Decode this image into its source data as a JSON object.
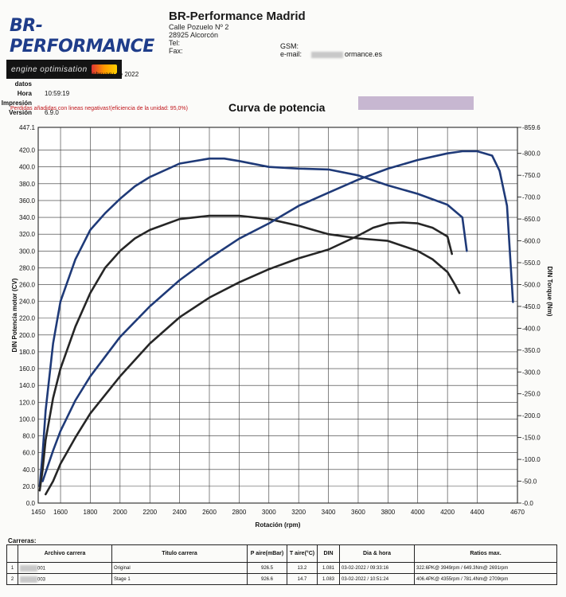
{
  "header": {
    "logo_title": "BR-PERFORMANCE",
    "logo_subtitle": "engine optimisation",
    "company": "BR-Performance Madrid",
    "address1": "Calle Pozuelo Nº 2",
    "address2": "28925 Alcorcón",
    "tel_label": "Tel:",
    "fax_label": "Fax:",
    "gsm_label": "GSM:",
    "email_label": "e-mail:",
    "email_value": "ormance.es"
  },
  "meta": [
    {
      "key": "Imprime datos",
      "value": "Thursday, 3 de February de 2022"
    },
    {
      "key": "Hora Impresión",
      "value": "10:59:19"
    },
    {
      "key": "Versión",
      "value": "6.9.0"
    }
  ],
  "chart_data": {
    "type": "line",
    "title": "Curva de potencia",
    "note": "Perdidas añadidas con lineas negativas!(eficiencia de la unidad: 95,0%)",
    "xlabel": "Rotación (rpm)",
    "ylabel_left": "DIN Potencia motor (CV)",
    "ylabel_right": "DIN Torque (Nm)",
    "xlim": [
      1450,
      4670
    ],
    "ylim_left": [
      0,
      447.1
    ],
    "ylim_right": [
      0,
      859.6
    ],
    "x_ticks": [
      1600,
      1800,
      2000,
      2200,
      2400,
      2600,
      2800,
      3000,
      3200,
      3400,
      3600,
      3800,
      4000,
      4200,
      4400
    ],
    "x_tick_labels": [
      "1450",
      "1600",
      "1800",
      "2000",
      "2200",
      "2400",
      "2600",
      "2800",
      "3000",
      "3200",
      "3400",
      "3600",
      "3800",
      "4000",
      "4200",
      "4400",
      "4670"
    ],
    "y_left_ticks": [
      0,
      20,
      40,
      60,
      80,
      100,
      120,
      140,
      160,
      180,
      200,
      220,
      240,
      260,
      280,
      300,
      320,
      340,
      360,
      380,
      400,
      420
    ],
    "y_left_labels": [
      "0.0",
      "20.0",
      "40.0",
      "60.0",
      "80.0",
      "100.0",
      "120.0",
      "140.0",
      "160.0",
      "180.0",
      "200.0",
      "220.0",
      "240.0",
      "260.0",
      "280.0",
      "300.0",
      "320.0",
      "340.0",
      "360.0",
      "380.0",
      "400.0",
      "420.0",
      "447.1"
    ],
    "y_right_ticks": [
      0,
      50,
      100,
      150,
      200,
      250,
      300,
      350,
      400,
      450,
      500,
      550,
      600,
      650,
      700,
      750,
      800
    ],
    "y_right_labels": [
      "0.0",
      "50.0",
      "100.0",
      "150.0",
      "200.0",
      "250.0",
      "300.0",
      "350.0",
      "400.0",
      "450.0",
      "500.0",
      "550.0",
      "600.0",
      "650.0",
      "700.0",
      "750.0",
      "800.0",
      "859.6"
    ],
    "grid": true,
    "series": [
      {
        "name": "Stage 1",
        "quantity": "power",
        "axis": "left",
        "color": "#1f3a78",
        "x": [
          1460,
          1480,
          1500,
          1550,
          1600,
          1700,
          1800,
          1900,
          2000,
          2100,
          2200,
          2400,
          2600,
          2700,
          2800,
          3000,
          3200,
          3400,
          3600,
          3800,
          4000,
          4200,
          4300,
          4330
        ],
        "y": [
          20,
          60,
          110,
          190,
          240,
          290,
          325,
          345,
          362,
          377,
          388,
          404,
          410,
          410,
          407,
          400,
          398,
          397,
          390,
          378,
          368,
          355,
          340,
          300
        ]
      },
      {
        "name": "Original",
        "quantity": "power",
        "axis": "left",
        "color": "#262626",
        "x": [
          1460,
          1480,
          1500,
          1550,
          1600,
          1700,
          1800,
          1900,
          2000,
          2100,
          2200,
          2400,
          2600,
          2800,
          3000,
          3200,
          3400,
          3600,
          3800,
          4000,
          4100,
          4200,
          4250,
          4280
        ],
        "y": [
          15,
          40,
          75,
          125,
          160,
          210,
          250,
          280,
          300,
          315,
          325,
          338,
          342,
          342,
          338,
          330,
          320,
          315,
          312,
          300,
          290,
          275,
          260,
          250
        ]
      },
      {
        "name": "Stage 1",
        "quantity": "torque",
        "axis": "right",
        "color": "#1f3a78",
        "x": [
          1480,
          1500,
          1550,
          1600,
          1700,
          1800,
          2000,
          2200,
          2400,
          2600,
          2800,
          3000,
          3200,
          3400,
          3600,
          3800,
          4000,
          4200,
          4300,
          4400,
          4500,
          4550,
          4600,
          4640
        ],
        "y": [
          50,
          70,
          120,
          165,
          235,
          290,
          380,
          450,
          510,
          560,
          605,
          640,
          680,
          710,
          740,
          765,
          785,
          800,
          805,
          805,
          795,
          760,
          680,
          460
        ]
      },
      {
        "name": "Original",
        "quantity": "torque",
        "axis": "right",
        "color": "#262626",
        "x": [
          1500,
          1550,
          1600,
          1700,
          1800,
          2000,
          2200,
          2400,
          2600,
          2800,
          3000,
          3200,
          3400,
          3600,
          3700,
          3800,
          3900,
          4000,
          4100,
          4200,
          4230
        ],
        "y": [
          20,
          50,
          90,
          150,
          205,
          290,
          365,
          425,
          470,
          505,
          535,
          560,
          580,
          612,
          630,
          640,
          642,
          640,
          630,
          610,
          570
        ]
      }
    ]
  },
  "runs": {
    "title": "Carreras:",
    "columns": [
      "Archivo carrera",
      "Titulo carrera",
      "P aire(mBar)",
      "T aire(°C)",
      "DIN",
      "Dia & hora",
      "Ratios max."
    ],
    "rows": [
      {
        "num": "1",
        "file": "001",
        "title": "Original",
        "p": "926.5",
        "t": "13.2",
        "din": "1.081",
        "date": "03-02-2022 / 09:33:16",
        "ratios": "322.6PK@ 3949rpm / 649.3Nm@ 2691rpm"
      },
      {
        "num": "2",
        "file": "003",
        "title": "Stage 1",
        "p": "926.6",
        "t": "14.7",
        "din": "1.083",
        "date": "03-02-2022 / 10:51:24",
        "ratios": "406.4PK@ 4355rpm / 781.4Nm@ 2709rpm"
      }
    ]
  }
}
